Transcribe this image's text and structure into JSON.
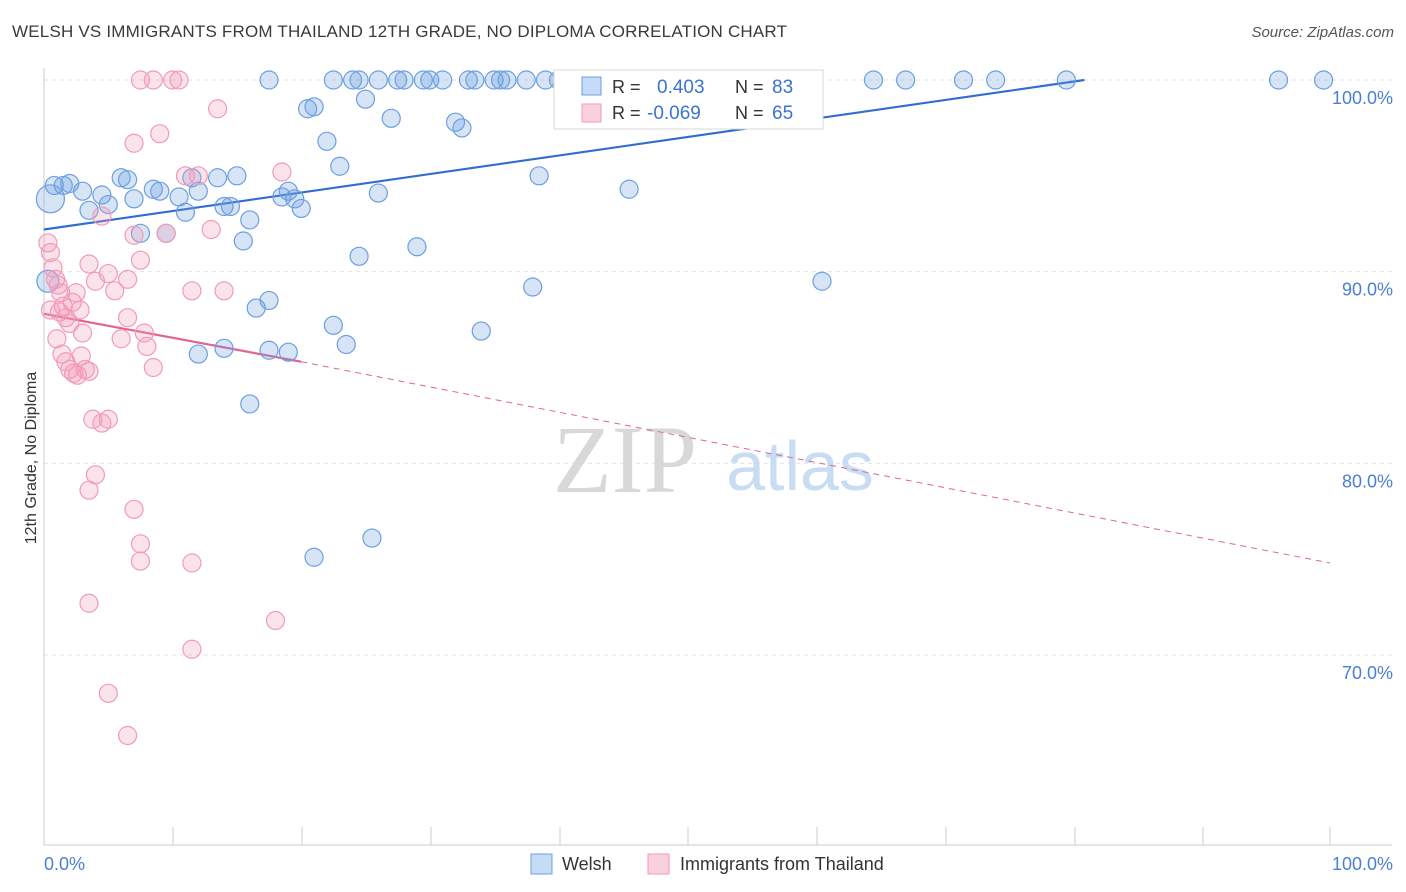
{
  "title": "WELSH VS IMMIGRANTS FROM THAILAND 12TH GRADE, NO DIPLOMA CORRELATION CHART",
  "source": "Source: ZipAtlas.com",
  "watermark": {
    "zip": "ZIP",
    "atlas": "atlas"
  },
  "chart_data": {
    "type": "scatter",
    "ylabel": "12th Grade, No Diploma",
    "x_tick_labels": [
      "0.0%",
      "100.0%"
    ],
    "y_tick_labels": [
      "100.0%",
      "90.0%",
      "80.0%",
      "70.0%"
    ],
    "y_ticks": [
      100,
      90,
      80,
      70
    ],
    "xlim": [
      0,
      100
    ],
    "ylim": [
      60,
      100
    ],
    "grid": true,
    "legend_position": "bottom",
    "stats_box": [
      {
        "r_label": "R =",
        "r_value": "0.403",
        "n_label": "N =",
        "n_value": "83"
      },
      {
        "r_label": "R =",
        "r_value": "-0.069",
        "n_label": "N =",
        "n_value": "65"
      }
    ],
    "series": [
      {
        "name": "Welsh",
        "color": "#6b9fe0",
        "trend": {
          "x": [
            0,
            80.9
          ],
          "y": [
            92.2,
            100.0
          ],
          "dashed_to": null
        },
        "points": [
          [
            0.5,
            93.8
          ],
          [
            0.8,
            94.5
          ],
          [
            1.5,
            94.5
          ],
          [
            2.0,
            94.6
          ],
          [
            3.0,
            94.2
          ],
          [
            3.5,
            93.2
          ],
          [
            4.5,
            94.0
          ],
          [
            5.0,
            93.5
          ],
          [
            6.5,
            94.8
          ],
          [
            7.0,
            93.8
          ],
          [
            6.0,
            94.9
          ],
          [
            7.5,
            92.0
          ],
          [
            8.5,
            94.3
          ],
          [
            9.0,
            94.2
          ],
          [
            9.5,
            92.0
          ],
          [
            10.5,
            93.9
          ],
          [
            11.0,
            93.1
          ],
          [
            12.0,
            94.2
          ],
          [
            11.5,
            94.9
          ],
          [
            13.5,
            94.9
          ],
          [
            14.0,
            93.4
          ],
          [
            14.5,
            93.4
          ],
          [
            15.0,
            95.0
          ],
          [
            15.5,
            91.6
          ],
          [
            16.0,
            92.7
          ],
          [
            16.5,
            88.1
          ],
          [
            17.5,
            88.5
          ],
          [
            17.5,
            100.0
          ],
          [
            18.5,
            93.9
          ],
          [
            19.0,
            94.2
          ],
          [
            19.5,
            93.8
          ],
          [
            20.0,
            93.3
          ],
          [
            20.5,
            98.5
          ],
          [
            21.0,
            98.6
          ],
          [
            22.0,
            96.8
          ],
          [
            22.5,
            100.0
          ],
          [
            23.0,
            95.5
          ],
          [
            24.0,
            100.0
          ],
          [
            24.5,
            100.0
          ],
          [
            25.0,
            99.0
          ],
          [
            26.0,
            100.0
          ],
          [
            27.0,
            98.0
          ],
          [
            27.5,
            100.0
          ],
          [
            28.0,
            100.0
          ],
          [
            29.5,
            100.0
          ],
          [
            30.0,
            100.0
          ],
          [
            31.0,
            100.0
          ],
          [
            32.0,
            97.8
          ],
          [
            32.5,
            97.5
          ],
          [
            33.0,
            100.0
          ],
          [
            33.5,
            100.0
          ],
          [
            35.0,
            100.0
          ],
          [
            35.5,
            100.0
          ],
          [
            36.0,
            100.0
          ],
          [
            37.5,
            100.0
          ],
          [
            38.5,
            95.0
          ],
          [
            39.0,
            100.0
          ],
          [
            40.0,
            100.0
          ],
          [
            42.5,
            100.0
          ],
          [
            45.5,
            94.3
          ],
          [
            26.0,
            94.1
          ],
          [
            24.5,
            90.8
          ],
          [
            29.0,
            91.3
          ],
          [
            38.0,
            89.2
          ],
          [
            34.0,
            86.9
          ],
          [
            22.5,
            87.2
          ],
          [
            23.5,
            86.2
          ],
          [
            17.5,
            85.9
          ],
          [
            14.0,
            86.0
          ],
          [
            12.0,
            85.7
          ],
          [
            19.0,
            85.8
          ],
          [
            16.0,
            83.1
          ],
          [
            21.0,
            75.1
          ],
          [
            25.5,
            76.1
          ],
          [
            60.5,
            89.5
          ],
          [
            64.5,
            100.0
          ],
          [
            67.0,
            100.0
          ],
          [
            71.5,
            100.0
          ],
          [
            74.0,
            100.0
          ],
          [
            79.5,
            100.0
          ],
          [
            96.0,
            100.0
          ],
          [
            99.5,
            100.0
          ],
          [
            0.3,
            89.5
          ]
        ],
        "sizes": {
          "0": 14,
          "82": 11
        }
      },
      {
        "name": "Immigrants from Thailand",
        "color": "#f29ab7",
        "trend": {
          "x": [
            0,
            20.0
          ],
          "y": [
            87.8,
            85.3
          ],
          "dashed_to": [
            100,
            74.8
          ]
        },
        "points": [
          [
            0.3,
            91.5
          ],
          [
            0.5,
            91.0
          ],
          [
            0.7,
            90.2
          ],
          [
            0.9,
            89.6
          ],
          [
            1.1,
            89.3
          ],
          [
            1.3,
            88.9
          ],
          [
            1.5,
            88.2
          ],
          [
            1.7,
            87.6
          ],
          [
            2.0,
            87.3
          ],
          [
            2.2,
            88.4
          ],
          [
            2.5,
            88.9
          ],
          [
            1.0,
            86.5
          ],
          [
            1.4,
            85.7
          ],
          [
            1.7,
            85.3
          ],
          [
            2.0,
            84.9
          ],
          [
            2.3,
            84.7
          ],
          [
            2.6,
            84.6
          ],
          [
            2.9,
            85.6
          ],
          [
            3.2,
            84.9
          ],
          [
            3.5,
            84.8
          ],
          [
            3.0,
            86.8
          ],
          [
            3.5,
            90.4
          ],
          [
            4.0,
            89.5
          ],
          [
            4.5,
            92.9
          ],
          [
            5.0,
            89.9
          ],
          [
            5.5,
            89.0
          ],
          [
            6.0,
            86.5
          ],
          [
            6.5,
            89.6
          ],
          [
            7.0,
            91.9
          ],
          [
            7.5,
            90.6
          ],
          [
            7.8,
            86.8
          ],
          [
            8.0,
            86.1
          ],
          [
            8.5,
            85.0
          ],
          [
            9.0,
            97.2
          ],
          [
            9.5,
            92.0
          ],
          [
            10.0,
            100.0
          ],
          [
            10.5,
            100.0
          ],
          [
            11.0,
            95.0
          ],
          [
            11.5,
            89.0
          ],
          [
            12.0,
            95.0
          ],
          [
            13.0,
            92.2
          ],
          [
            13.5,
            98.5
          ],
          [
            14.0,
            89.0
          ],
          [
            18.5,
            95.2
          ],
          [
            7.5,
            100.0
          ],
          [
            8.5,
            100.0
          ],
          [
            7.0,
            96.7
          ],
          [
            4.5,
            82.1
          ],
          [
            5.0,
            82.3
          ],
          [
            4.0,
            79.4
          ],
          [
            3.5,
            78.6
          ],
          [
            7.0,
            77.6
          ],
          [
            7.5,
            75.8
          ],
          [
            7.5,
            74.9
          ],
          [
            11.5,
            74.8
          ],
          [
            3.5,
            72.7
          ],
          [
            18.0,
            71.8
          ],
          [
            11.5,
            70.3
          ],
          [
            5.0,
            68.0
          ],
          [
            6.5,
            65.8
          ],
          [
            0.5,
            88.0
          ],
          [
            1.2,
            87.9
          ],
          [
            2.8,
            88.0
          ],
          [
            6.5,
            87.6
          ],
          [
            3.8,
            82.3
          ]
        ],
        "sizes": {}
      }
    ]
  },
  "legend": [
    {
      "label": "Welsh",
      "color": "#6b9fe0"
    },
    {
      "label": "Immigrants from Thailand",
      "color": "#f29ab7"
    }
  ]
}
